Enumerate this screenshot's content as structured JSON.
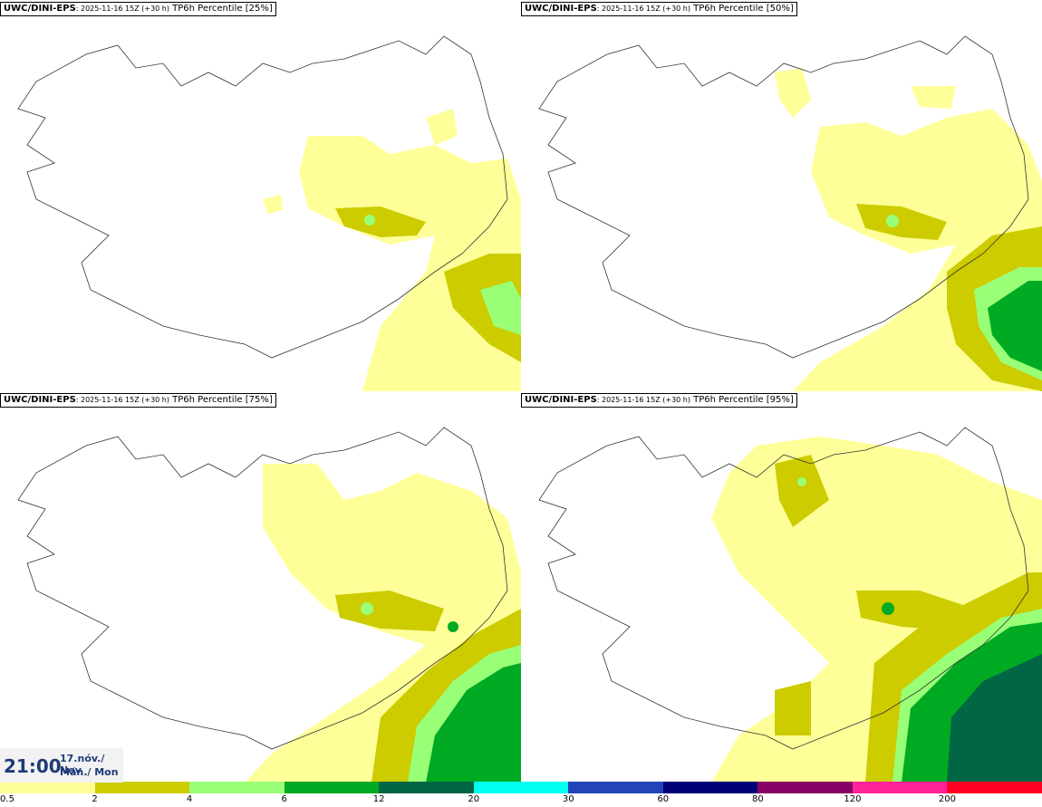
{
  "panels": [
    {
      "source": "UWC/DINI-EPS",
      "run": ": 2025-11-16 15Z (+30 h)",
      "field": " TP6h Percentile [25%]"
    },
    {
      "source": "UWC/DINI-EPS",
      "run": ": 2025-11-16 15Z (+30 h)",
      "field": " TP6h Percentile [50%]"
    },
    {
      "source": "UWC/DINI-EPS",
      "run": ": 2025-11-16 15Z (+30 h)",
      "field": " TP6h Percentile [75%]"
    },
    {
      "source": "UWC/DINI-EPS",
      "run": ": 2025-11-16 15Z (+30 h)",
      "field": " TP6h Percentile [95%]"
    }
  ],
  "valid_time": {
    "time": "21:00",
    "date_line1": "17.nóv./ Nov",
    "date_line2": "Mán./ Mon"
  },
  "legend": {
    "colors": [
      "#ffff99",
      "#cccc00",
      "#99ff77",
      "#00aa22",
      "#006644",
      "#00ffee",
      "#2244bb",
      "#000077",
      "#880066",
      "#ff2299",
      "#ff0022"
    ],
    "ticks": [
      "0.5",
      "2",
      "4",
      "6",
      "12",
      "20",
      "30",
      "60",
      "80",
      "120",
      "200"
    ]
  },
  "colors": {
    "lt_yellow": "#ffff99",
    "olive": "#cccc00",
    "lt_green": "#99ff77",
    "green": "#00aa22",
    "dk_green": "#006644"
  }
}
